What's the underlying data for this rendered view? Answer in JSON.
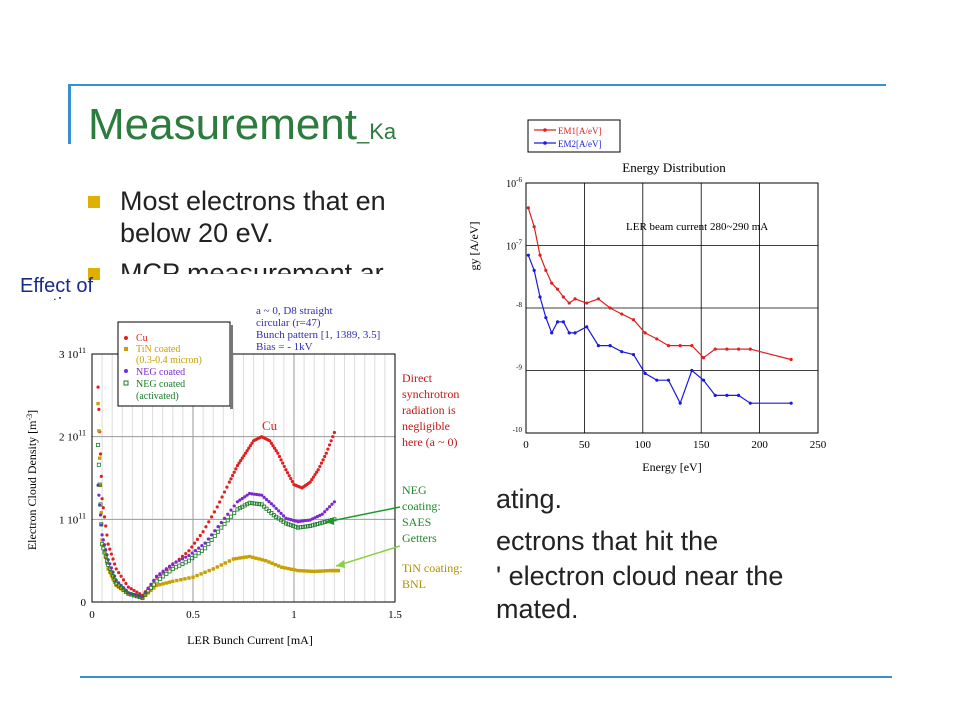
{
  "slide": {
    "title": "Measurement",
    "title_sub": "_Ka",
    "bullet1_line1": "Most electrons that en",
    "bullet1_line2": "below 20 eV.",
    "bullet2_partial": "MCP measurement ar",
    "side_label_line1": "Effect of",
    "side_label_line2": "coatings",
    "bottom_line1": "ating.",
    "bottom_line2": "ectrons that hit the",
    "bottom_line3": "' electron cloud near the",
    "bottom_line4": "mated.",
    "colors": {
      "title": "#2b7c3e",
      "rule": "#3a8fd0",
      "bullet": "#e0b000",
      "side_label": "#1a2a8a"
    }
  },
  "chart_left": {
    "xlabel": "LER Bunch Current [mA]",
    "ylabel": "Electron Cloud Density [m",
    "ylabel_sup": "-3",
    "ylabel_end": "]",
    "x_ticks": [
      "0",
      "0.5",
      "1",
      "1.5"
    ],
    "y_ticks": [
      "0",
      "1 10",
      "2 10",
      "3 10"
    ],
    "y_tick_exp": "11",
    "conditions": [
      "a ~ 0, D8 straight",
      "circular (r=47)",
      "Bunch pattern [1, 1389, 3.5]",
      "Bias = - 1kV"
    ],
    "legend": [
      "Cu",
      "TiN coated",
      "(0.3-0.4 micron)",
      "NEG coated",
      "NEG coated",
      "(activated)"
    ],
    "annotations": {
      "cu_label": "Cu",
      "direct": [
        "Direct",
        "synchrotron",
        "radiation is",
        "negligible",
        "here (a ~ 0)"
      ],
      "neg": [
        "NEG",
        "coating:",
        "SAES",
        "Getters"
      ],
      "tin": [
        "TiN coating:",
        "BNL"
      ]
    }
  },
  "chart_right": {
    "title": "Energy Distribution",
    "annotation": "LER beam current 280~290 mA",
    "xlabel": "Energy [eV]",
    "ylabel": "gy [A/eV]",
    "x_ticks": [
      "0",
      "50",
      "100",
      "150",
      "200",
      "250"
    ],
    "y_ticks": [
      {
        "base": "10",
        "exp": "-6"
      },
      {
        "base": "10",
        "exp": "-7"
      },
      {
        "base": "",
        "exp": "-8"
      },
      {
        "base": "",
        "exp": "-9"
      },
      {
        "base": "",
        "exp": "-10"
      }
    ],
    "legend": [
      "EM1[A/eV]",
      "EM2[A/eV]"
    ]
  },
  "chart_data": [
    {
      "type": "scatter",
      "title": "",
      "xlabel": "LER Bunch Current [mA]",
      "ylabel": "Electron Cloud Density [m-3]",
      "xlim": [
        0,
        1.5
      ],
      "ylim": [
        0,
        300000000000.0
      ],
      "grid": true,
      "legend_position": "top-left",
      "series": [
        {
          "name": "Cu",
          "color": "#e02020",
          "x": [
            0.03,
            0.05,
            0.08,
            0.12,
            0.18,
            0.25,
            0.32,
            0.4,
            0.48,
            0.55,
            0.62,
            0.68,
            0.72,
            0.76,
            0.8,
            0.84,
            0.88,
            0.92,
            0.96,
            1.0,
            1.04,
            1.08,
            1.12,
            1.16,
            1.2
          ],
          "y": [
            260000000000.0,
            125000000000.0,
            70000000000.0,
            40000000000.0,
            18000000000.0,
            8000000000.0,
            30000000000.0,
            45000000000.0,
            62000000000.0,
            85000000000.0,
            115000000000.0,
            145000000000.0,
            165000000000.0,
            180000000000.0,
            195000000000.0,
            200000000000.0,
            195000000000.0,
            180000000000.0,
            160000000000.0,
            142000000000.0,
            138000000000.0,
            145000000000.0,
            160000000000.0,
            180000000000.0,
            205000000000.0
          ]
        },
        {
          "name": "TiN coated",
          "color": "#c8a000",
          "x": [
            0.03,
            0.05,
            0.08,
            0.12,
            0.18,
            0.25,
            0.32,
            0.4,
            0.5,
            0.6,
            0.7,
            0.78,
            0.86,
            0.94,
            1.02,
            1.1,
            1.18,
            1.22
          ],
          "y": [
            240000000000.0,
            75000000000.0,
            40000000000.0,
            20000000000.0,
            10000000000.0,
            5000000000.0,
            20000000000.0,
            25000000000.0,
            30000000000.0,
            40000000000.0,
            52000000000.0,
            55000000000.0,
            50000000000.0,
            42000000000.0,
            38000000000.0,
            37000000000.0,
            38000000000.0,
            38000000000.0
          ]
        },
        {
          "name": "NEG coated",
          "color": "#7a2ad0",
          "x": [
            0.03,
            0.05,
            0.08,
            0.12,
            0.18,
            0.25,
            0.32,
            0.4,
            0.48,
            0.56,
            0.64,
            0.72,
            0.78,
            0.84,
            0.9,
            0.96,
            1.02,
            1.08,
            1.14,
            1.2
          ],
          "y": [
            140000000000.0,
            80000000000.0,
            50000000000.0,
            25000000000.0,
            10000000000.0,
            5000000000.0,
            30000000000.0,
            45000000000.0,
            55000000000.0,
            70000000000.0,
            95000000000.0,
            120000000000.0,
            130000000000.0,
            128000000000.0,
            115000000000.0,
            100000000000.0,
            96000000000.0,
            98000000000.0,
            105000000000.0,
            120000000000.0
          ]
        },
        {
          "name": "NEG coated (activated)",
          "color": "#1a7a2a",
          "x": [
            0.03,
            0.05,
            0.08,
            0.12,
            0.18,
            0.25,
            0.32,
            0.4,
            0.48,
            0.56,
            0.64,
            0.72,
            0.78,
            0.84,
            0.9,
            0.96,
            1.02,
            1.08,
            1.14,
            1.2
          ],
          "y": [
            190000000000.0,
            70000000000.0,
            45000000000.0,
            22000000000.0,
            10000000000.0,
            5000000000.0,
            25000000000.0,
            40000000000.0,
            50000000000.0,
            65000000000.0,
            90000000000.0,
            112000000000.0,
            120000000000.0,
            118000000000.0,
            105000000000.0,
            95000000000.0,
            90000000000.0,
            92000000000.0,
            96000000000.0,
            100000000000.0
          ]
        }
      ]
    },
    {
      "type": "line",
      "title": "Energy Distribution",
      "xlabel": "Energy [eV]",
      "ylabel": "[A/eV]",
      "xlim": [
        0,
        250
      ],
      "ylim": [
        1e-10,
        1e-06
      ],
      "y_scale": "log",
      "grid": true,
      "legend_position": "top-left",
      "series": [
        {
          "name": "EM1[A/eV]",
          "color": "#e02020",
          "x": [
            2,
            7,
            12,
            17,
            22,
            27,
            32,
            37,
            42,
            52,
            62,
            72,
            82,
            92,
            102,
            112,
            122,
            132,
            142,
            152,
            162,
            172,
            182,
            192,
            227
          ],
          "y": [
            4e-07,
            2e-07,
            7e-08,
            4e-08,
            2.5e-08,
            2e-08,
            1.5e-08,
            1.2e-08,
            1.4e-08,
            1.2e-08,
            1.4e-08,
            1e-08,
            8e-09,
            6.5e-09,
            4e-09,
            3.2e-09,
            2.5e-09,
            2.5e-09,
            2.5e-09,
            1.6e-09,
            2.2e-09,
            2.2e-09,
            2.2e-09,
            2.2e-09,
            1.5e-09
          ]
        },
        {
          "name": "EM2[A/eV]",
          "color": "#1a1ae0",
          "x": [
            2,
            7,
            12,
            17,
            22,
            27,
            32,
            37,
            42,
            52,
            62,
            72,
            82,
            92,
            102,
            112,
            122,
            132,
            142,
            152,
            162,
            172,
            182,
            192,
            227
          ],
          "y": [
            7e-08,
            4e-08,
            1.5e-08,
            7e-09,
            4e-09,
            6e-09,
            6e-09,
            4e-09,
            4e-09,
            5e-09,
            2.5e-09,
            2.5e-09,
            2e-09,
            1.8e-09,
            9e-10,
            7e-10,
            7e-10,
            3e-10,
            1e-09,
            7e-10,
            4e-10,
            4e-10,
            4e-10,
            3e-10,
            3e-10
          ]
        }
      ]
    }
  ]
}
